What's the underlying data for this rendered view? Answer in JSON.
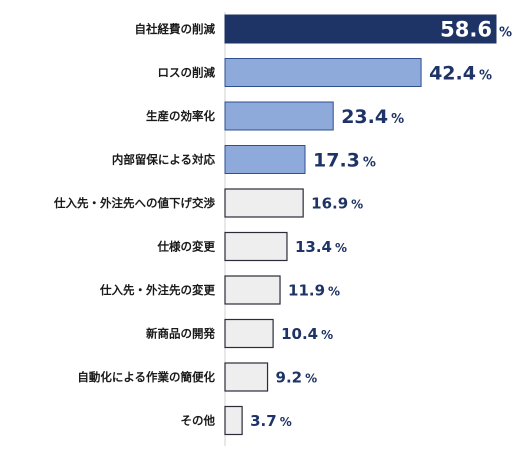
{
  "chart_data": {
    "type": "bar",
    "orientation": "horizontal",
    "categories": [
      "自社経費の削減",
      "ロスの削減",
      "生産の効率化",
      "内部留保による対応",
      "仕入先・外注先への値下げ交渉",
      "仕様の変更",
      "仕入先・外注先の変更",
      "新商品の開発",
      "自動化による作業の簡便化",
      "その他"
    ],
    "values": [
      58.6,
      42.4,
      23.4,
      17.3,
      16.9,
      13.4,
      11.9,
      10.4,
      9.2,
      3.7
    ],
    "value_labels": [
      "58.6",
      "42.4",
      "23.4",
      "17.3",
      "16.9",
      "13.4",
      "11.9",
      "10.4",
      "9.2",
      "3.7"
    ],
    "unit": "%",
    "tiers": [
      "top",
      "high",
      "high",
      "high",
      "low",
      "low",
      "low",
      "low",
      "low",
      "low"
    ],
    "xlim": [
      0,
      58.6
    ],
    "grid": false,
    "legend": "none",
    "colors": {
      "top_fill": "#1f3466",
      "high_fill": "#8eaadb",
      "high_stroke": "#2f4f8f",
      "low_fill": "#eeeeee",
      "low_stroke": "#2b2b3a",
      "top_label": "#ffffff",
      "high_label": "#1f3466",
      "low_label": "#1f3466",
      "axis": "#d0d0d0",
      "category_text": "#1a1a1a"
    }
  }
}
